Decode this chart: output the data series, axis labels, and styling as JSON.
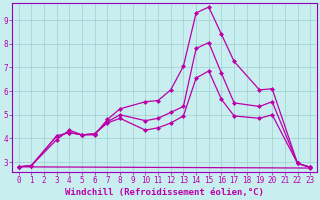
{
  "bg_color": "#c8eef0",
  "line_color": "#bb00aa",
  "grid_color": "#9fcfcf",
  "spine_color": "#9900bb",
  "xlim": [
    -0.5,
    23.5
  ],
  "ylim": [
    2.6,
    9.7
  ],
  "xticks": [
    0,
    1,
    2,
    3,
    4,
    5,
    6,
    7,
    8,
    9,
    10,
    11,
    12,
    13,
    14,
    15,
    16,
    17,
    18,
    19,
    20,
    21,
    22,
    23
  ],
  "yticks": [
    3,
    4,
    5,
    6,
    7,
    8,
    9
  ],
  "series": [
    {
      "x": [
        0,
        1,
        3,
        4,
        5,
        6,
        7,
        8,
        10,
        11,
        12,
        13,
        14,
        15,
        16,
        17,
        19,
        20,
        22,
        23
      ],
      "y": [
        2.8,
        2.85,
        3.95,
        4.35,
        4.15,
        4.15,
        4.8,
        5.25,
        5.55,
        5.6,
        6.05,
        7.05,
        9.3,
        9.55,
        8.4,
        7.25,
        6.05,
        6.1,
        2.95,
        2.78
      ]
    },
    {
      "x": [
        0,
        1,
        3,
        4,
        5,
        6,
        7,
        8,
        10,
        11,
        12,
        13,
        14,
        15,
        16,
        17,
        19,
        20,
        22,
        23
      ],
      "y": [
        2.8,
        2.85,
        4.1,
        4.25,
        4.15,
        4.2,
        4.7,
        5.0,
        4.75,
        4.85,
        5.1,
        5.35,
        7.8,
        8.05,
        6.75,
        5.5,
        5.35,
        5.55,
        2.95,
        2.78
      ]
    },
    {
      "x": [
        0,
        1,
        3,
        4,
        5,
        6,
        7,
        8,
        10,
        11,
        12,
        13,
        14,
        15,
        16,
        17,
        19,
        20,
        22,
        23
      ],
      "y": [
        2.8,
        2.85,
        4.1,
        4.25,
        4.15,
        4.2,
        4.65,
        4.85,
        4.35,
        4.45,
        4.65,
        4.95,
        6.55,
        6.85,
        5.65,
        4.95,
        4.85,
        5.0,
        2.95,
        2.78
      ]
    },
    {
      "x": [
        0,
        23
      ],
      "y": [
        2.8,
        2.75
      ]
    }
  ],
  "marker": "D",
  "markersize": 2.0,
  "linewidth": 0.9,
  "xlabel": "Windchill (Refroidissement éolien,°C)",
  "xlabel_color": "#bb00aa",
  "tick_color": "#bb00aa",
  "xlabel_fontsize": 6.5,
  "tick_fontsize": 5.5
}
